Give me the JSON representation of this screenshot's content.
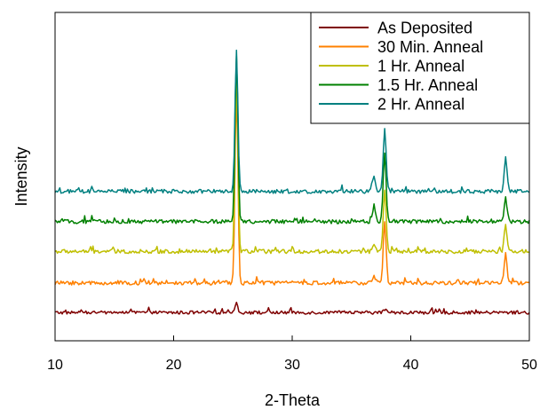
{
  "chart_data": {
    "type": "line",
    "xlabel": "2-Theta",
    "ylabel": "Intensity",
    "xlim": [
      10,
      50
    ],
    "x_ticks": [
      10,
      20,
      30,
      40,
      50
    ],
    "x_tick_labels": [
      "10",
      "20",
      "30",
      "40",
      "50"
    ],
    "ylim": [
      0,
      100
    ],
    "y_ticks_labeled": false,
    "grid": false,
    "legend_position": "top-right",
    "series": [
      {
        "name": "As Deposited",
        "color": "#7f0000",
        "baseline": 8.6,
        "noise": 0.5,
        "peaks": [
          {
            "x": 25.3,
            "height": 3.0
          },
          {
            "x": 37.8,
            "height": 1.0
          }
        ]
      },
      {
        "name": "30 Min. Anneal",
        "color": "#ff8000",
        "baseline": 17.6,
        "noise": 0.6,
        "peaks": [
          {
            "x": 25.3,
            "height": 59.0
          },
          {
            "x": 36.9,
            "height": 2.0
          },
          {
            "x": 37.8,
            "height": 19.0
          },
          {
            "x": 48.0,
            "height": 9.0
          }
        ]
      },
      {
        "name": "1 Hr. Anneal",
        "color": "#bfbf00",
        "baseline": 27.2,
        "noise": 0.6,
        "peaks": [
          {
            "x": 25.3,
            "height": 53.0
          },
          {
            "x": 36.9,
            "height": 2.5
          },
          {
            "x": 37.8,
            "height": 19.0
          },
          {
            "x": 48.0,
            "height": 8.0
          }
        ]
      },
      {
        "name": "1.5 Hr. Anneal",
        "color": "#008000",
        "baseline": 36.3,
        "noise": 0.6,
        "peaks": [
          {
            "x": 25.3,
            "height": 51.0
          },
          {
            "x": 36.9,
            "height": 5.0
          },
          {
            "x": 37.8,
            "height": 21.0
          },
          {
            "x": 48.0,
            "height": 7.0
          }
        ]
      },
      {
        "name": "2 Hr. Anneal",
        "color": "#008080",
        "baseline": 45.5,
        "noise": 0.6,
        "peaks": [
          {
            "x": 25.3,
            "height": 43.0
          },
          {
            "x": 36.9,
            "height": 5.0
          },
          {
            "x": 37.8,
            "height": 19.0
          },
          {
            "x": 48.0,
            "height": 10.0
          }
        ]
      }
    ]
  }
}
